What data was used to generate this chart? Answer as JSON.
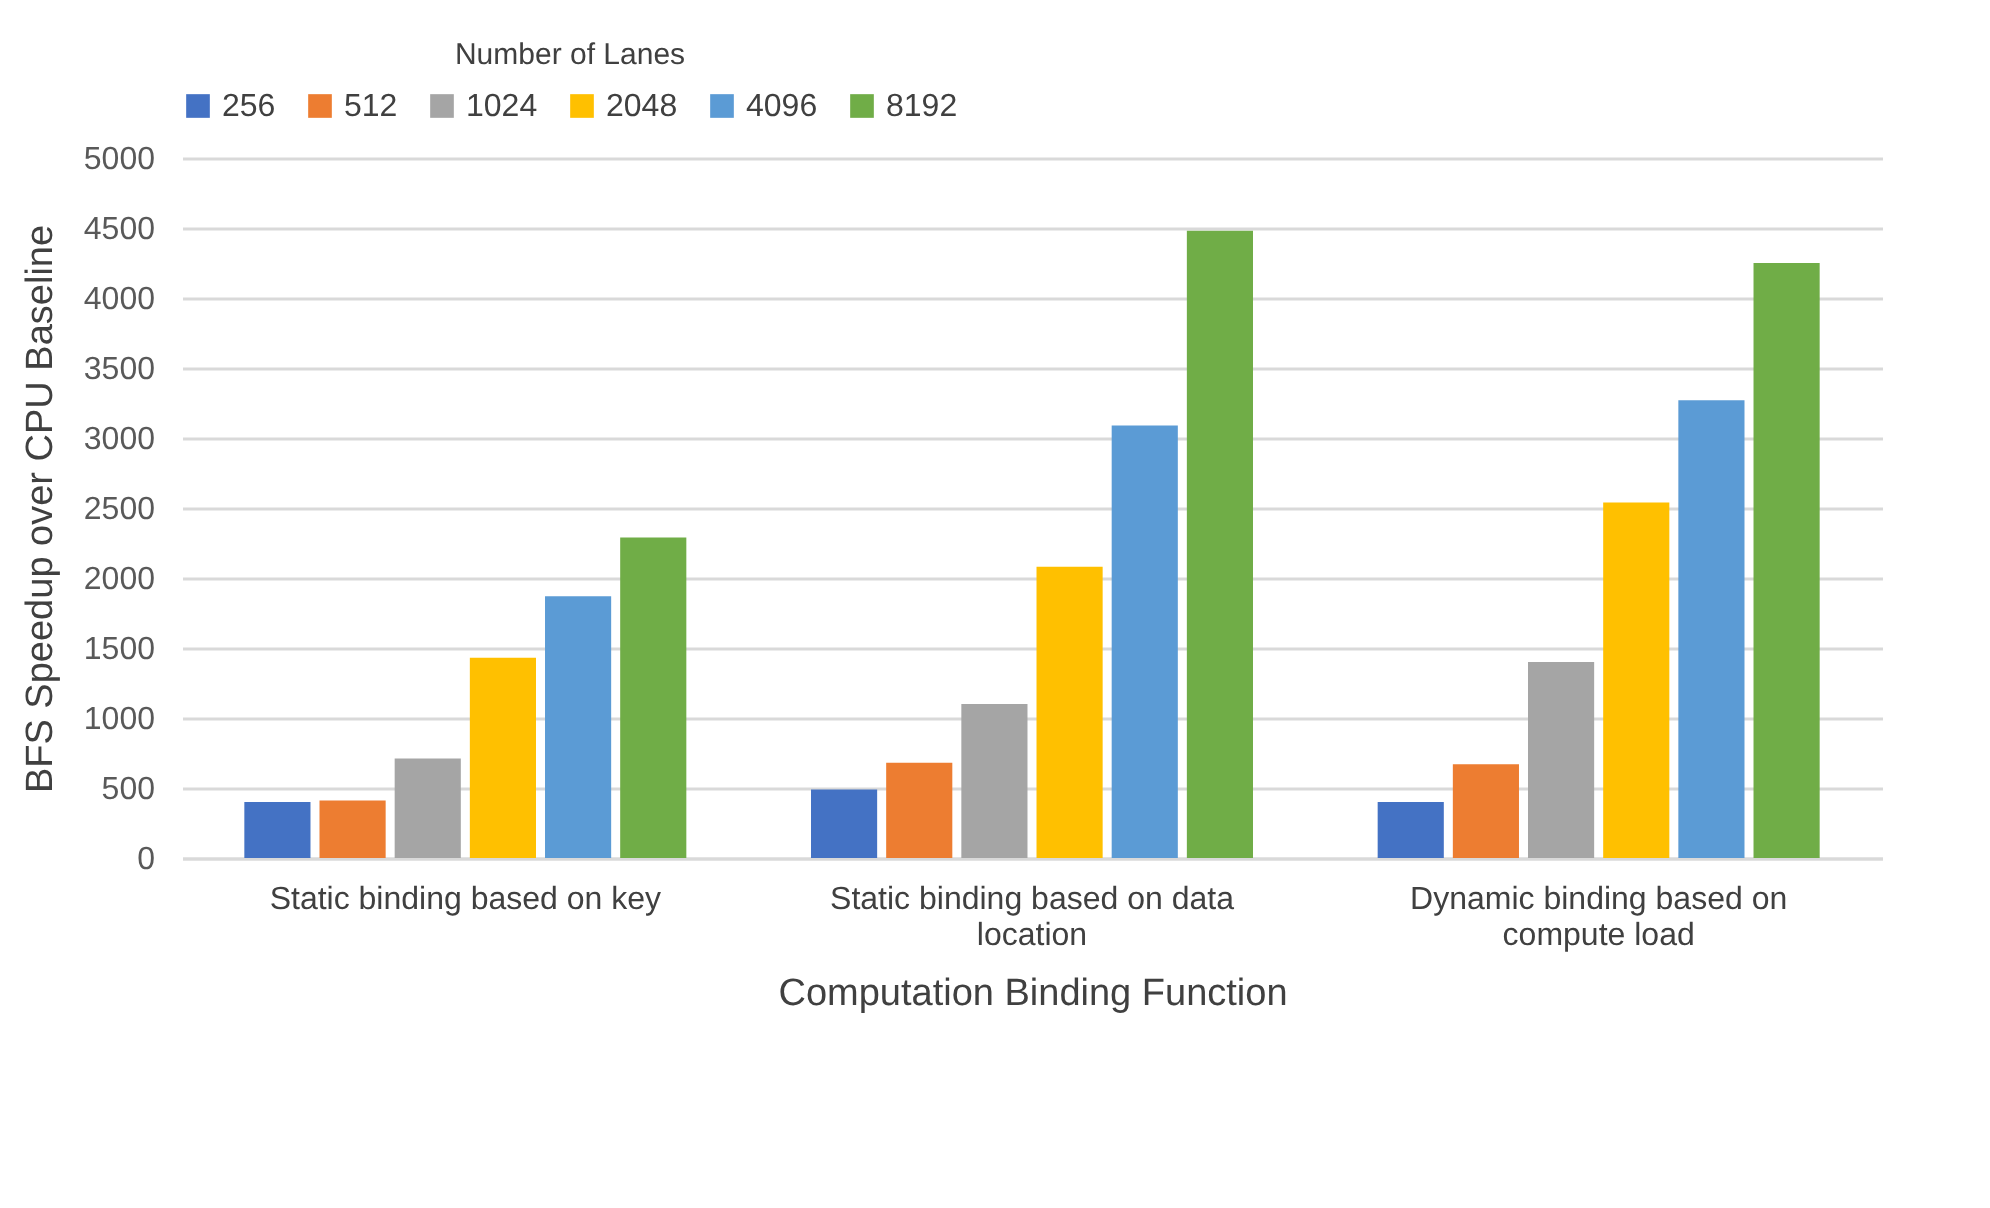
{
  "chart_data": {
    "type": "bar",
    "xlabel": "Computation Binding Function",
    "ylabel": "BFS Speedup over CPU Baseline",
    "legend_title": "Number of Lanes",
    "legend": "top",
    "categories": [
      "Static binding based on key",
      "Static binding based on data location",
      "Dynamic binding based on compute load"
    ],
    "series": [
      {
        "name": "256",
        "color": "#4472c4",
        "values": [
          400,
          490,
          400
        ]
      },
      {
        "name": "512",
        "color": "#ed7d31",
        "values": [
          410,
          680,
          670
        ]
      },
      {
        "name": "1024",
        "color": "#a5a5a5",
        "values": [
          710,
          1100,
          1400
        ]
      },
      {
        "name": "2048",
        "color": "#ffc000",
        "values": [
          1430,
          2080,
          2540
        ]
      },
      {
        "name": "4096",
        "color": "#5b9bd5",
        "values": [
          1870,
          3090,
          3270
        ]
      },
      {
        "name": "8192",
        "color": "#70ad47",
        "values": [
          2290,
          4480,
          4250
        ]
      }
    ],
    "ylim": [
      0,
      5000
    ],
    "yticks": [
      0,
      500,
      1000,
      1500,
      2000,
      2500,
      3000,
      3500,
      4000,
      4500,
      5000
    ],
    "grid": "y"
  }
}
